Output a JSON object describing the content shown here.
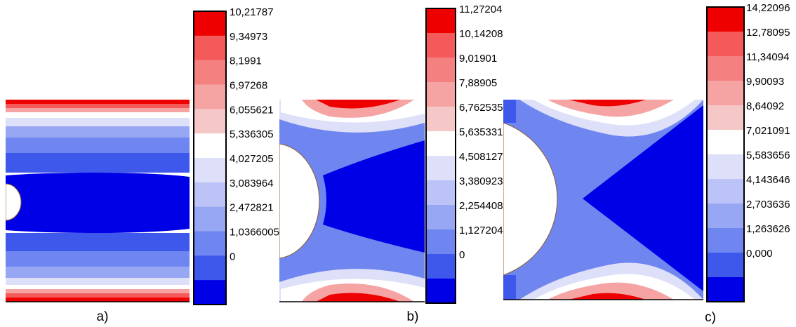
{
  "palette": [
    "#0000e6",
    "#3f58ec",
    "#6f86f0",
    "#98a7f3",
    "#bcc3f6",
    "#dde0f8",
    "#ffffff",
    "#f5c7c7",
    "#f5a3a3",
    "#f48080",
    "#f55a5a",
    "#ee0000"
  ],
  "panels": [
    {
      "label": "a)",
      "colorbar_labels": [
        "10,21787",
        "9,34973",
        "8,1991",
        "6,97268",
        "6,055621",
        "5,336305",
        "4,027205",
        "3,083964",
        "2,472821",
        "1,0366005",
        "0"
      ]
    },
    {
      "label": "b)",
      "colorbar_labels": [
        "11,27204",
        "10,14208",
        "9,01901",
        "7,88905",
        "6,762535",
        "5,635331",
        "4,508127",
        "3,380923",
        "2,254408",
        "1,127204",
        "0"
      ]
    },
    {
      "label": "c)",
      "colorbar_labels": [
        "14,22096",
        "12,78095",
        "11,34094",
        "9,90093",
        "8,64092",
        "7,021091",
        "5,583656",
        "4,143646",
        "2,703636",
        "1,263626",
        "0,000"
      ]
    }
  ]
}
